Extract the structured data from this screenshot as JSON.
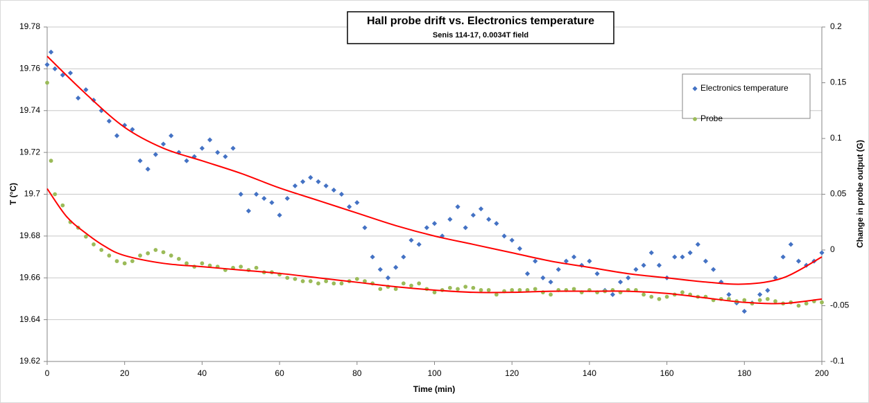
{
  "chart_data": {
    "type": "scatter",
    "title": "Hall probe drift vs. Electronics temperature",
    "subtitle": "Senis 114-17, 0.0034T field",
    "x_label": "Time (min)",
    "y_label": "T (°C)",
    "y2_label": "Change in probe output (G)",
    "xlim": [
      0,
      200
    ],
    "xticks": [
      0,
      20,
      40,
      60,
      80,
      100,
      120,
      140,
      160,
      180,
      200
    ],
    "ylim": [
      19.62,
      19.78
    ],
    "yticks": [
      19.62,
      19.64,
      19.66,
      19.68,
      19.7,
      19.72,
      19.74,
      19.76,
      19.78
    ],
    "y2lim": [
      -0.1,
      0.2
    ],
    "y2ticks": [
      -0.1,
      -0.05,
      0,
      0.05,
      0.1,
      0.15,
      0.2
    ],
    "grid": true,
    "legend": "upper right",
    "trend_color": "#ff0000",
    "x": [
      0,
      1,
      2,
      4,
      6,
      8,
      10,
      12,
      14,
      16,
      18,
      20,
      22,
      24,
      26,
      28,
      30,
      32,
      34,
      36,
      38,
      40,
      42,
      44,
      46,
      48,
      50,
      52,
      54,
      56,
      58,
      60,
      62,
      64,
      66,
      68,
      70,
      72,
      74,
      76,
      78,
      80,
      82,
      84,
      86,
      88,
      90,
      92,
      94,
      96,
      98,
      100,
      102,
      104,
      106,
      108,
      110,
      112,
      114,
      116,
      118,
      120,
      122,
      124,
      126,
      128,
      130,
      132,
      134,
      136,
      138,
      140,
      142,
      144,
      146,
      148,
      150,
      152,
      154,
      156,
      158,
      160,
      162,
      164,
      166,
      168,
      170,
      172,
      174,
      176,
      178,
      180,
      182,
      184,
      186,
      188,
      190,
      192,
      194,
      196,
      198,
      200
    ],
    "series": [
      {
        "name": "Electronics temperature",
        "color": "#4472c4",
        "marker": "diamond",
        "axis": "y",
        "values": [
          19.762,
          19.768,
          19.76,
          19.757,
          19.758,
          19.746,
          19.75,
          19.745,
          19.74,
          19.735,
          19.728,
          19.733,
          19.731,
          19.716,
          19.712,
          19.719,
          19.724,
          19.728,
          19.72,
          19.716,
          19.718,
          19.722,
          19.726,
          19.72,
          19.718,
          19.722,
          19.7,
          19.692,
          19.7,
          19.698,
          19.696,
          19.69,
          19.698,
          19.704,
          19.706,
          19.708,
          19.706,
          19.704,
          19.702,
          19.7,
          19.694,
          19.696,
          19.684,
          19.67,
          19.664,
          19.66,
          19.665,
          19.67,
          19.678,
          19.676,
          19.684,
          19.686,
          19.68,
          19.688,
          19.694,
          19.684,
          19.69,
          19.693,
          19.688,
          19.686,
          19.68,
          19.678,
          19.674,
          19.662,
          19.668,
          19.66,
          19.658,
          19.664,
          19.668,
          19.67,
          19.666,
          19.668,
          19.662,
          19.654,
          19.652,
          19.658,
          19.66,
          19.664,
          19.666,
          19.672,
          19.666,
          19.66,
          19.67,
          19.67,
          19.672,
          19.676,
          19.668,
          19.664,
          19.658,
          19.652,
          19.648,
          19.644,
          19.648,
          19.652,
          19.654,
          19.66,
          19.67,
          19.676,
          19.668,
          19.666,
          19.668,
          19.672
        ],
        "trend": {
          "x": [
            0,
            10,
            20,
            30,
            40,
            50,
            60,
            70,
            80,
            90,
            100,
            110,
            120,
            130,
            140,
            150,
            160,
            170,
            180,
            190,
            200
          ],
          "values": [
            19.766,
            19.748,
            19.732,
            19.722,
            19.716,
            19.71,
            19.703,
            19.697,
            19.691,
            19.685,
            19.68,
            19.676,
            19.672,
            19.668,
            19.665,
            19.662,
            19.66,
            19.658,
            19.657,
            19.66,
            19.67
          ]
        }
      },
      {
        "name": "Probe",
        "color": "#9bbb59",
        "marker": "circle",
        "axis": "y2",
        "values": [
          0.15,
          0.08,
          0.05,
          0.04,
          0.025,
          0.02,
          0.012,
          0.005,
          0,
          -0.005,
          -0.01,
          -0.012,
          -0.01,
          -0.005,
          -0.003,
          0,
          -0.002,
          -0.005,
          -0.008,
          -0.012,
          -0.015,
          -0.012,
          -0.014,
          -0.015,
          -0.018,
          -0.016,
          -0.015,
          -0.018,
          -0.016,
          -0.02,
          -0.02,
          -0.022,
          -0.025,
          -0.026,
          -0.028,
          -0.028,
          -0.03,
          -0.028,
          -0.03,
          -0.03,
          -0.028,
          -0.026,
          -0.028,
          -0.03,
          -0.035,
          -0.033,
          -0.035,
          -0.03,
          -0.032,
          -0.03,
          -0.035,
          -0.038,
          -0.036,
          -0.034,
          -0.035,
          -0.033,
          -0.034,
          -0.036,
          -0.036,
          -0.04,
          -0.037,
          -0.036,
          -0.036,
          -0.036,
          -0.035,
          -0.038,
          -0.04,
          -0.036,
          -0.036,
          -0.035,
          -0.038,
          -0.036,
          -0.038,
          -0.037,
          -0.036,
          -0.038,
          -0.036,
          -0.036,
          -0.04,
          -0.042,
          -0.044,
          -0.042,
          -0.04,
          -0.038,
          -0.04,
          -0.042,
          -0.042,
          -0.045,
          -0.044,
          -0.044,
          -0.046,
          -0.045,
          -0.048,
          -0.045,
          -0.044,
          -0.046,
          -0.048,
          -0.047,
          -0.05,
          -0.048,
          -0.046,
          -0.047
        ],
        "trend": {
          "x": [
            0,
            5,
            10,
            15,
            20,
            30,
            40,
            50,
            60,
            70,
            80,
            90,
            100,
            110,
            120,
            130,
            140,
            150,
            160,
            170,
            180,
            190,
            200
          ],
          "values": [
            0.055,
            0.03,
            0.015,
            0.003,
            -0.005,
            -0.012,
            -0.015,
            -0.018,
            -0.021,
            -0.025,
            -0.029,
            -0.033,
            -0.036,
            -0.038,
            -0.038,
            -0.037,
            -0.037,
            -0.037,
            -0.039,
            -0.043,
            -0.047,
            -0.048,
            -0.044
          ]
        }
      }
    ]
  }
}
